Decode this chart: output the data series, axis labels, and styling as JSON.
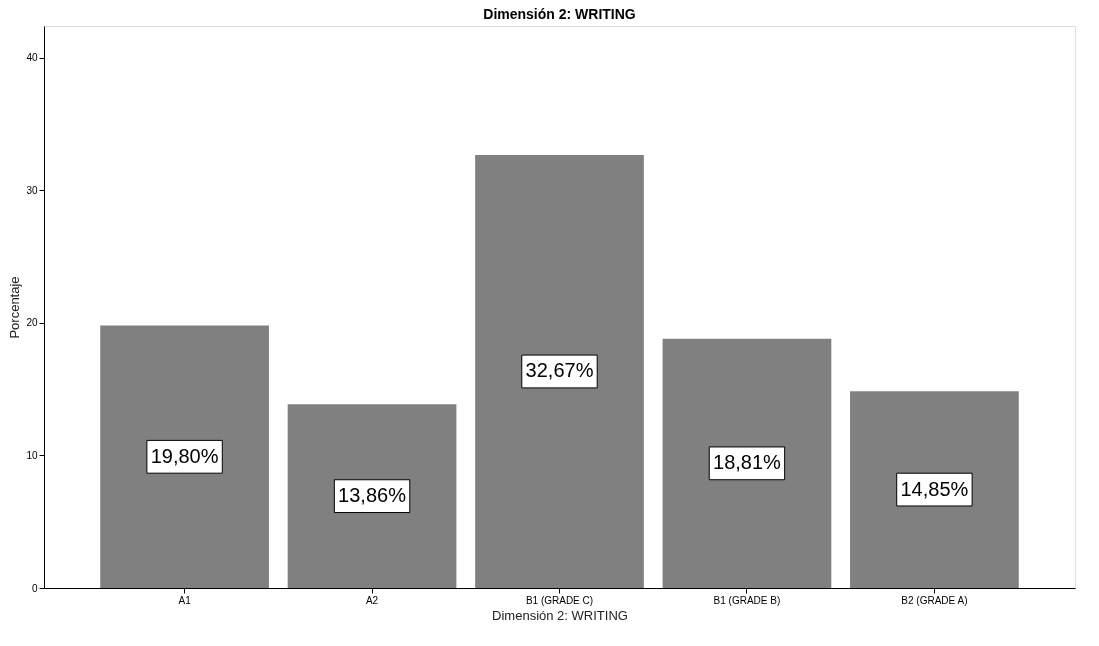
{
  "chart_data": {
    "type": "bar",
    "title": "Dimensión 2: WRITING",
    "xlabel": "Dimensión 2: WRITING",
    "ylabel": "Porcentaje",
    "categories": [
      "A1",
      "A2",
      "B1 (GRADE C)",
      "B1 (GRADE B)",
      "B2 (GRADE A)"
    ],
    "values": [
      19.8,
      13.86,
      32.67,
      18.81,
      14.85
    ],
    "value_labels": [
      "19,80%",
      "13,86%",
      "32,67%",
      "18,81%",
      "14,85%"
    ],
    "color": "#808080",
    "ylim": [
      0,
      42.4
    ],
    "yticks": [
      0,
      10,
      20,
      30,
      40
    ],
    "grid": false
  }
}
